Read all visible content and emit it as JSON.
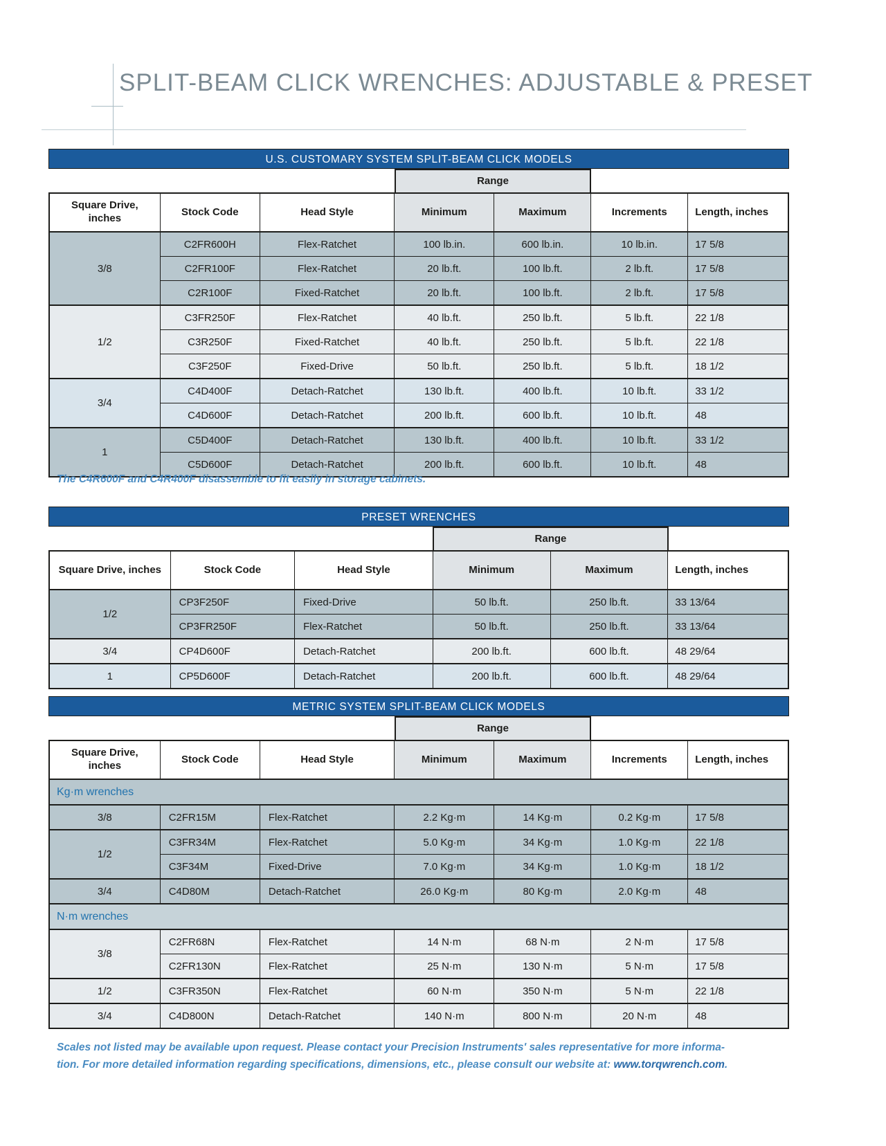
{
  "page": {
    "title": "SPLIT-BEAM CLICK WRENCHES: ADJUSTABLE & PRESET"
  },
  "colors": {
    "header_bar_blue": "#1b5b9c",
    "row_dark": "#b8c7ce",
    "row_light": "#e7ebee",
    "row_blue": "#d9e4ec",
    "range_gray": "#dfe3e6",
    "title_gray": "#7b8a93",
    "note_blue": "#4a8cc2",
    "border_black": "#1d1d1b"
  },
  "us_table": {
    "title": "U.S. CUSTOMARY SYSTEM SPLIT-BEAM CLICK MODELS",
    "range_label": "Range",
    "columns": [
      "Square Drive, inches",
      "Stock Code",
      "Head Style",
      "Minimum",
      "Maximum",
      "Increments",
      "Length, inches"
    ],
    "groups": [
      {
        "drive": "3/8",
        "shade": "dark",
        "rows": [
          [
            "C2FR600H",
            "Flex-Ratchet",
            "100 lb.in.",
            "600 lb.in.",
            "10 lb.in.",
            "17 5/8"
          ],
          [
            "C2FR100F",
            "Flex-Ratchet",
            "20 lb.ft.",
            "100 lb.ft.",
            "2 lb.ft.",
            "17 5/8"
          ],
          [
            "C2R100F",
            "Fixed-Ratchet",
            "20 lb.ft.",
            "100 lb.ft.",
            "2 lb.ft.",
            "17 5/8"
          ]
        ]
      },
      {
        "drive": "1/2",
        "shade": "light",
        "rows": [
          [
            "C3FR250F",
            "Flex-Ratchet",
            "40 lb.ft.",
            "250 lb.ft.",
            "5 lb.ft.",
            "22 1/8"
          ],
          [
            "C3R250F",
            "Fixed-Ratchet",
            "40 lb.ft.",
            "250 lb.ft.",
            "5 lb.ft.",
            "22 1/8"
          ],
          [
            "C3F250F",
            "Fixed-Drive",
            "50 lb.ft.",
            "250 lb.ft.",
            "5 lb.ft.",
            "18 1/2"
          ]
        ]
      },
      {
        "drive": "3/4",
        "shade": "blue",
        "rows": [
          [
            "C4D400F",
            "Detach-Ratchet",
            "130 lb.ft.",
            "400 lb.ft.",
            "10 lb.ft.",
            "33 1/2"
          ],
          [
            "C4D600F",
            "Detach-Ratchet",
            "200 lb.ft.",
            "600 lb.ft.",
            "10 lb.ft.",
            "48"
          ]
        ]
      },
      {
        "drive": "1",
        "shade": "dark",
        "rows": [
          [
            "C5D400F",
            "Detach-Ratchet",
            "130 lb.ft.",
            "400 lb.ft.",
            "10 lb.ft.",
            "33 1/2"
          ],
          [
            "C5D600F",
            "Detach-Ratchet",
            "200 lb.ft.",
            "600 lb.ft.",
            "10 lb.ft.",
            "48"
          ]
        ]
      }
    ],
    "note": "The C4R600F and C4R400F disassemble to fit easily in storage cabinets."
  },
  "preset_table": {
    "title": "PRESET WRENCHES",
    "range_label": "Range",
    "columns": [
      "Square Drive, inches",
      "Stock Code",
      "Head Style",
      "Minimum",
      "Maximum",
      "Length, inches"
    ],
    "groups": [
      {
        "drive": "1/2",
        "shade": "dark",
        "rows": [
          [
            "CP3F250F",
            "Fixed-Drive",
            "50 lb.ft.",
            "250 lb.ft.",
            "33 13/64"
          ],
          [
            "CP3FR250F",
            "Flex-Ratchet",
            "50 lb.ft.",
            "250 lb.ft.",
            "33 13/64"
          ]
        ]
      },
      {
        "drive": "3/4",
        "shade": "light",
        "rows": [
          [
            "CP4D600F",
            "Detach-Ratchet",
            "200 lb.ft.",
            "600 lb.ft.",
            "48 29/64"
          ]
        ]
      },
      {
        "drive": "1",
        "shade": "blue",
        "rows": [
          [
            "CP5D600F",
            "Detach-Ratchet",
            "200 lb.ft.",
            "600 lb.ft.",
            "48 29/64"
          ]
        ]
      }
    ]
  },
  "metric_table": {
    "title": "METRIC SYSTEM SPLIT-BEAM CLICK MODELS",
    "range_label": "Range",
    "columns": [
      "Square Drive, inches",
      "Stock Code",
      "Head Style",
      "Minimum",
      "Maximum",
      "Increments",
      "Length, inches"
    ],
    "sections": [
      {
        "label": "Kg·m wrenches",
        "band_shade": "dark",
        "shade": "dark",
        "groups": [
          {
            "drive": "3/8",
            "rows": [
              [
                "C2FR15M",
                "Flex-Ratchet",
                "2.2 Kg·m",
                "14 Kg·m",
                "0.2 Kg·m",
                "17 5/8"
              ]
            ]
          },
          {
            "drive": "1/2",
            "rows": [
              [
                "C3FR34M",
                "Flex-Ratchet",
                "5.0 Kg·m",
                "34 Kg·m",
                "1.0 Kg·m",
                "22 1/8"
              ],
              [
                "C3F34M",
                "Fixed-Drive",
                "7.0 Kg·m",
                "34 Kg·m",
                "1.0 Kg·m",
                "18 1/2"
              ]
            ]
          },
          {
            "drive": "3/4",
            "rows": [
              [
                "C4D80M",
                "Detach-Ratchet",
                "26.0 Kg·m",
                "80 Kg·m",
                "2.0 Kg·m",
                "48"
              ]
            ]
          }
        ]
      },
      {
        "label": "N·m wrenches",
        "band_shade": "mid",
        "shade": "light",
        "groups": [
          {
            "drive": "3/8",
            "rows": [
              [
                "C2FR68N",
                "Flex-Ratchet",
                "14 N·m",
                "68 N·m",
                "2 N·m",
                "17 5/8"
              ],
              [
                "C2FR130N",
                "Flex-Ratchet",
                "25 N·m",
                "130 N·m",
                "5 N·m",
                "17 5/8"
              ]
            ]
          },
          {
            "drive": "1/2",
            "rows": [
              [
                "C3FR350N",
                "Flex-Ratchet",
                "60 N·m",
                "350 N·m",
                "5 N·m",
                "22 1/8"
              ]
            ]
          },
          {
            "drive": "3/4",
            "rows": [
              [
                "C4D800N",
                "Detach-Ratchet",
                "140 N·m",
                "800 N·m",
                "20 N·m",
                "48"
              ]
            ]
          }
        ]
      }
    ]
  },
  "footer": {
    "line1": "Scales not listed may be available upon request. Please contact your Precision Instruments' sales representative for more informa-",
    "line2_prefix": "tion. For more detailed information regarding specifications, dimensions, etc., please consult our website at: ",
    "line2_bold": "www.torqwrench.com",
    "line2_suffix": "."
  }
}
